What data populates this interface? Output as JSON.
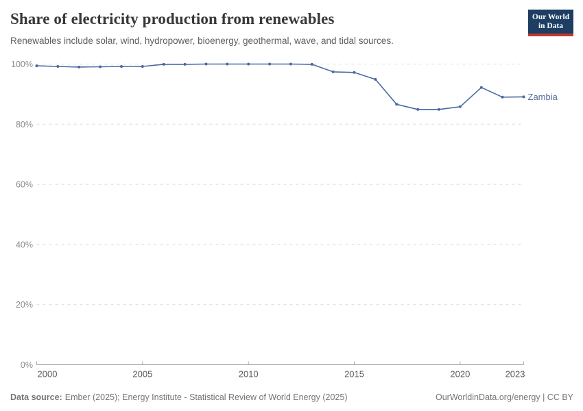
{
  "header": {
    "title": "Share of electricity production from renewables",
    "subtitle": "Renewables include solar, wind, hydropower, bioenergy, geothermal, wave, and tidal sources.",
    "logo": {
      "line1": "Our World",
      "line2": "in Data"
    }
  },
  "chart_data": {
    "type": "line",
    "title": "Share of electricity production from renewables",
    "x": [
      2000,
      2001,
      2002,
      2003,
      2004,
      2005,
      2006,
      2007,
      2008,
      2009,
      2010,
      2011,
      2012,
      2013,
      2014,
      2015,
      2016,
      2017,
      2018,
      2019,
      2020,
      2021,
      2022,
      2023
    ],
    "series": [
      {
        "name": "Zambia",
        "values": [
          99.4,
          99.2,
          99.0,
          99.1,
          99.2,
          99.2,
          99.9,
          99.9,
          100,
          100,
          100,
          100,
          100,
          99.9,
          97.4,
          97.2,
          94.9,
          86.6,
          84.9,
          84.9,
          85.8,
          92.2,
          89.0,
          89.1
        ]
      }
    ],
    "xlabel": "",
    "ylabel": "",
    "xlim": [
      2000,
      2023
    ],
    "ylim": [
      0,
      100
    ],
    "yticks": [
      0,
      20,
      40,
      60,
      80,
      100
    ],
    "ytick_suffix": "%",
    "xticks": [
      2000,
      2005,
      2010,
      2015,
      2020,
      2023
    ],
    "grid": "horizontal-dashed",
    "legend_position": "end-of-line-label",
    "markers": true
  },
  "footer": {
    "datasource_label": "Data source:",
    "datasource_text": "Ember (2025); Energy Institute - Statistical Review of World Energy (2025)",
    "attribution": "OurWorldinData.org/energy | CC BY"
  },
  "colors": {
    "line": "#4a69a2",
    "entity_label": "#53699b",
    "grid": "#dadada",
    "axis": "#9a9a9a",
    "tick": "#adadad",
    "ytick_label": "#8c8c8c",
    "xtick_label": "#5b5b5b",
    "title": "#383838",
    "subtitle": "#5e5e5e",
    "footer": "#757575",
    "logo_bg": "#1d3d63",
    "logo_stripe": "#c0392b"
  }
}
